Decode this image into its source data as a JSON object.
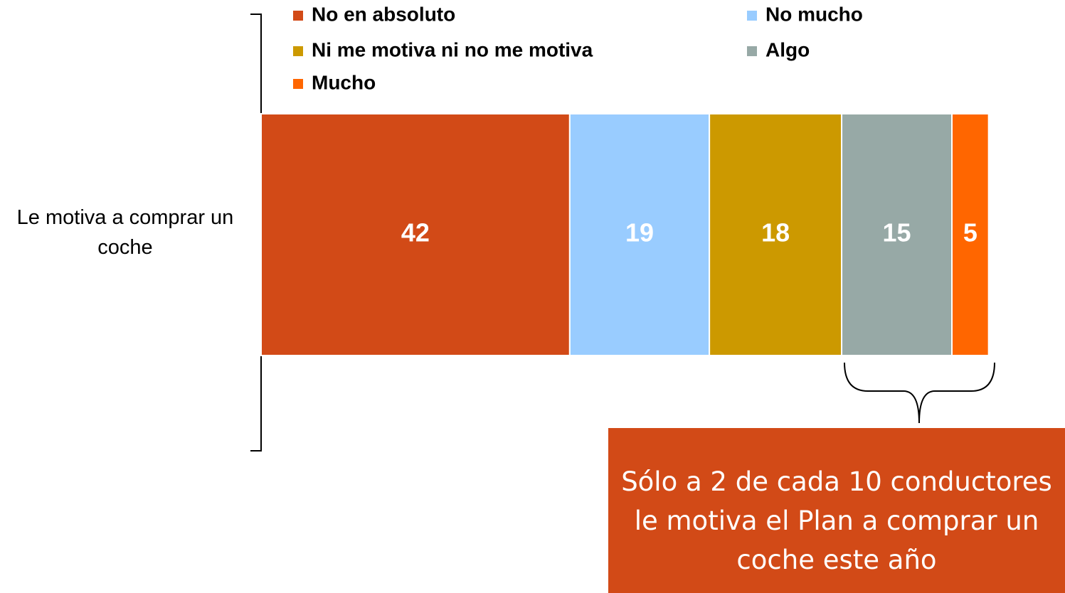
{
  "chart_data": {
    "type": "stacked-bar-horizontal",
    "categories": [
      "Le motiva a comprar un coche"
    ],
    "series": [
      {
        "name": "No en absoluto",
        "color": "#d24a17",
        "values": [
          42
        ]
      },
      {
        "name": "No mucho",
        "color": "#99ccff",
        "values": [
          19
        ]
      },
      {
        "name": "Ni me motiva ni no me motiva",
        "color": "#cc9900",
        "values": [
          18
        ]
      },
      {
        "name": "Algo",
        "color": "#97a9a6",
        "values": [
          15
        ]
      },
      {
        "name": "Mucho",
        "color": "#ff6600",
        "values": [
          5
        ]
      }
    ],
    "xlim": [
      0,
      100
    ],
    "annotation": "Sólo a 2 de cada 10 conductores le motiva el Plan a comprar un coche este año"
  }
}
